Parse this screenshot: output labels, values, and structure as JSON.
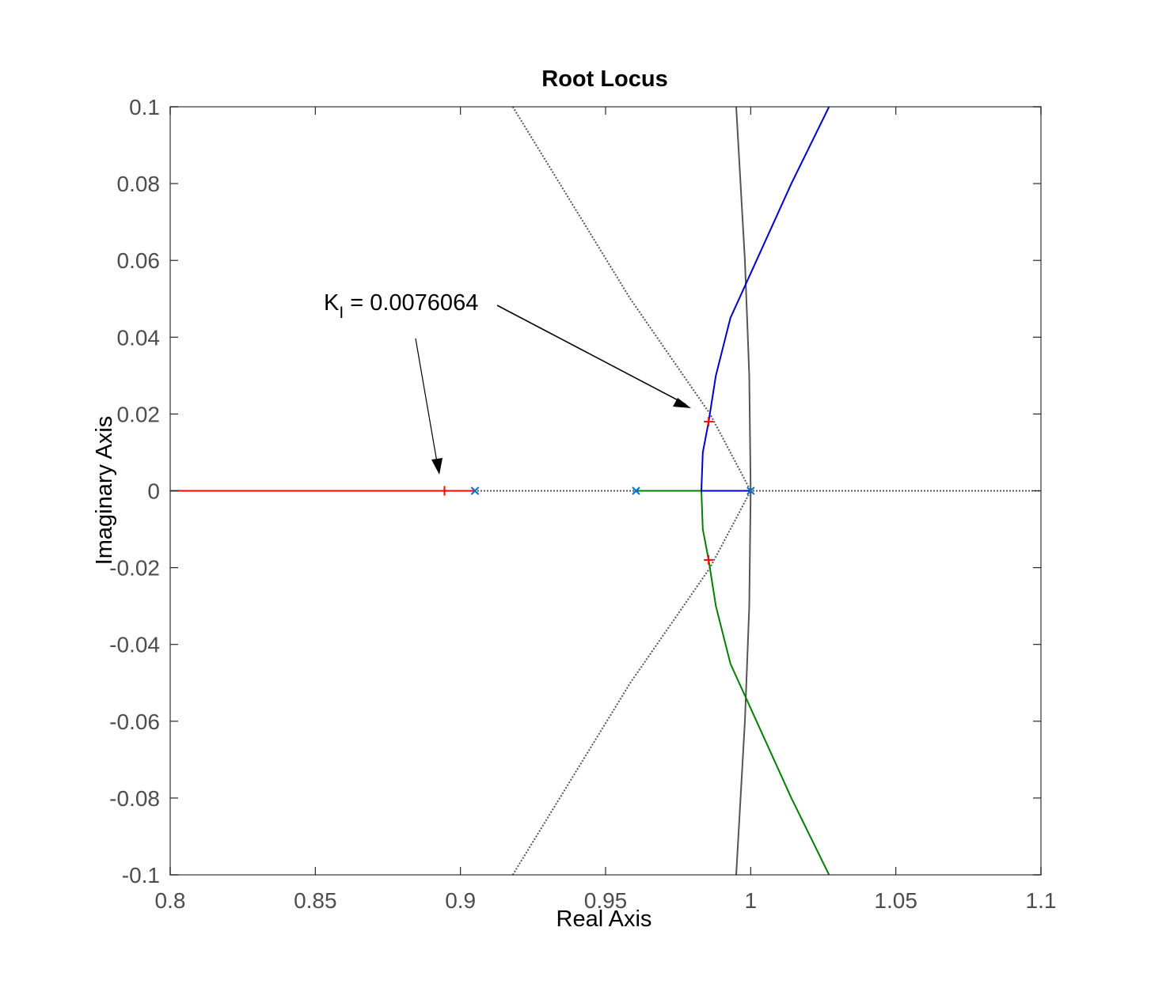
{
  "chart_data": {
    "type": "line",
    "title": "Root Locus",
    "xlabel": "Real Axis",
    "ylabel": "Imaginary Axis",
    "xlim": [
      0.8,
      1.1
    ],
    "ylim": [
      -0.1,
      0.1
    ],
    "xticks": [
      "0.8",
      "0.85",
      "0.9",
      "0.95",
      "1",
      "1.05",
      "1.1"
    ],
    "yticks": [
      "-0.1",
      "-0.08",
      "-0.06",
      "-0.04",
      "-0.02",
      "0",
      "0.02",
      "0.04",
      "0.06",
      "0.08",
      "0.1"
    ],
    "annotation": {
      "symbol": "K",
      "subscript": "I",
      "value_text": " = 0.0076064"
    },
    "unit_circle": {
      "color": "#555555",
      "x": [
        0.995,
        0.9965,
        0.998,
        0.999,
        0.9995,
        0.99975,
        1.0,
        0.99975,
        0.9995,
        0.999,
        0.998,
        0.9965,
        0.995
      ],
      "y": [
        0.1,
        0.08,
        0.06,
        0.04,
        0.03,
        0.015,
        0.0,
        -0.015,
        -0.03,
        -0.04,
        -0.06,
        -0.08,
        -0.1
      ]
    },
    "damping_grid": {
      "color": "#555555",
      "lines": [
        {
          "x": [
            0.918,
            0.9585,
            0.986,
            1.0
          ],
          "y": [
            0.1,
            0.05,
            0.02,
            0.0
          ]
        },
        {
          "x": [
            0.918,
            0.9585,
            0.986,
            1.0
          ],
          "y": [
            -0.1,
            -0.05,
            -0.02,
            0.0
          ]
        },
        {
          "x": [
            0.8,
            1.1
          ],
          "y": [
            0.0,
            0.0
          ]
        }
      ]
    },
    "series": [
      {
        "color": "#ff0000",
        "x": [
          0.8,
          0.85,
          0.8945,
          0.905
        ],
        "y": [
          0.0,
          0.0,
          0.0,
          0.0
        ]
      },
      {
        "color": "#008000",
        "x": [
          0.9605,
          0.97,
          0.983,
          0.9835,
          0.9855,
          0.988,
          0.993,
          1.002,
          1.014,
          1.027
        ],
        "y": [
          0.0,
          0.0,
          0.0,
          -0.01,
          -0.018,
          -0.03,
          -0.045,
          -0.06,
          -0.08,
          -0.1
        ],
        "x_segment_note": "",
        "extra": []
      },
      {
        "color": "#0000cc",
        "x": [
          1.0,
          0.99,
          0.983,
          0.9835,
          0.9855,
          0.988,
          0.993,
          1.002,
          1.014,
          1.027
        ],
        "y": [
          0.0,
          0.0,
          0.0,
          0.01,
          0.018,
          0.03,
          0.045,
          0.06,
          0.08,
          0.1
        ]
      }
    ],
    "poles": {
      "color": "#0072bd",
      "x": [
        0.905,
        0.9605,
        1.0
      ],
      "y": [
        0.0,
        0.0,
        0.0
      ]
    },
    "closed_loop_markers": {
      "color": "#ff0000",
      "x": [
        0.8945,
        0.9855,
        0.9855
      ],
      "y": [
        0.0,
        0.018,
        -0.018
      ]
    }
  }
}
